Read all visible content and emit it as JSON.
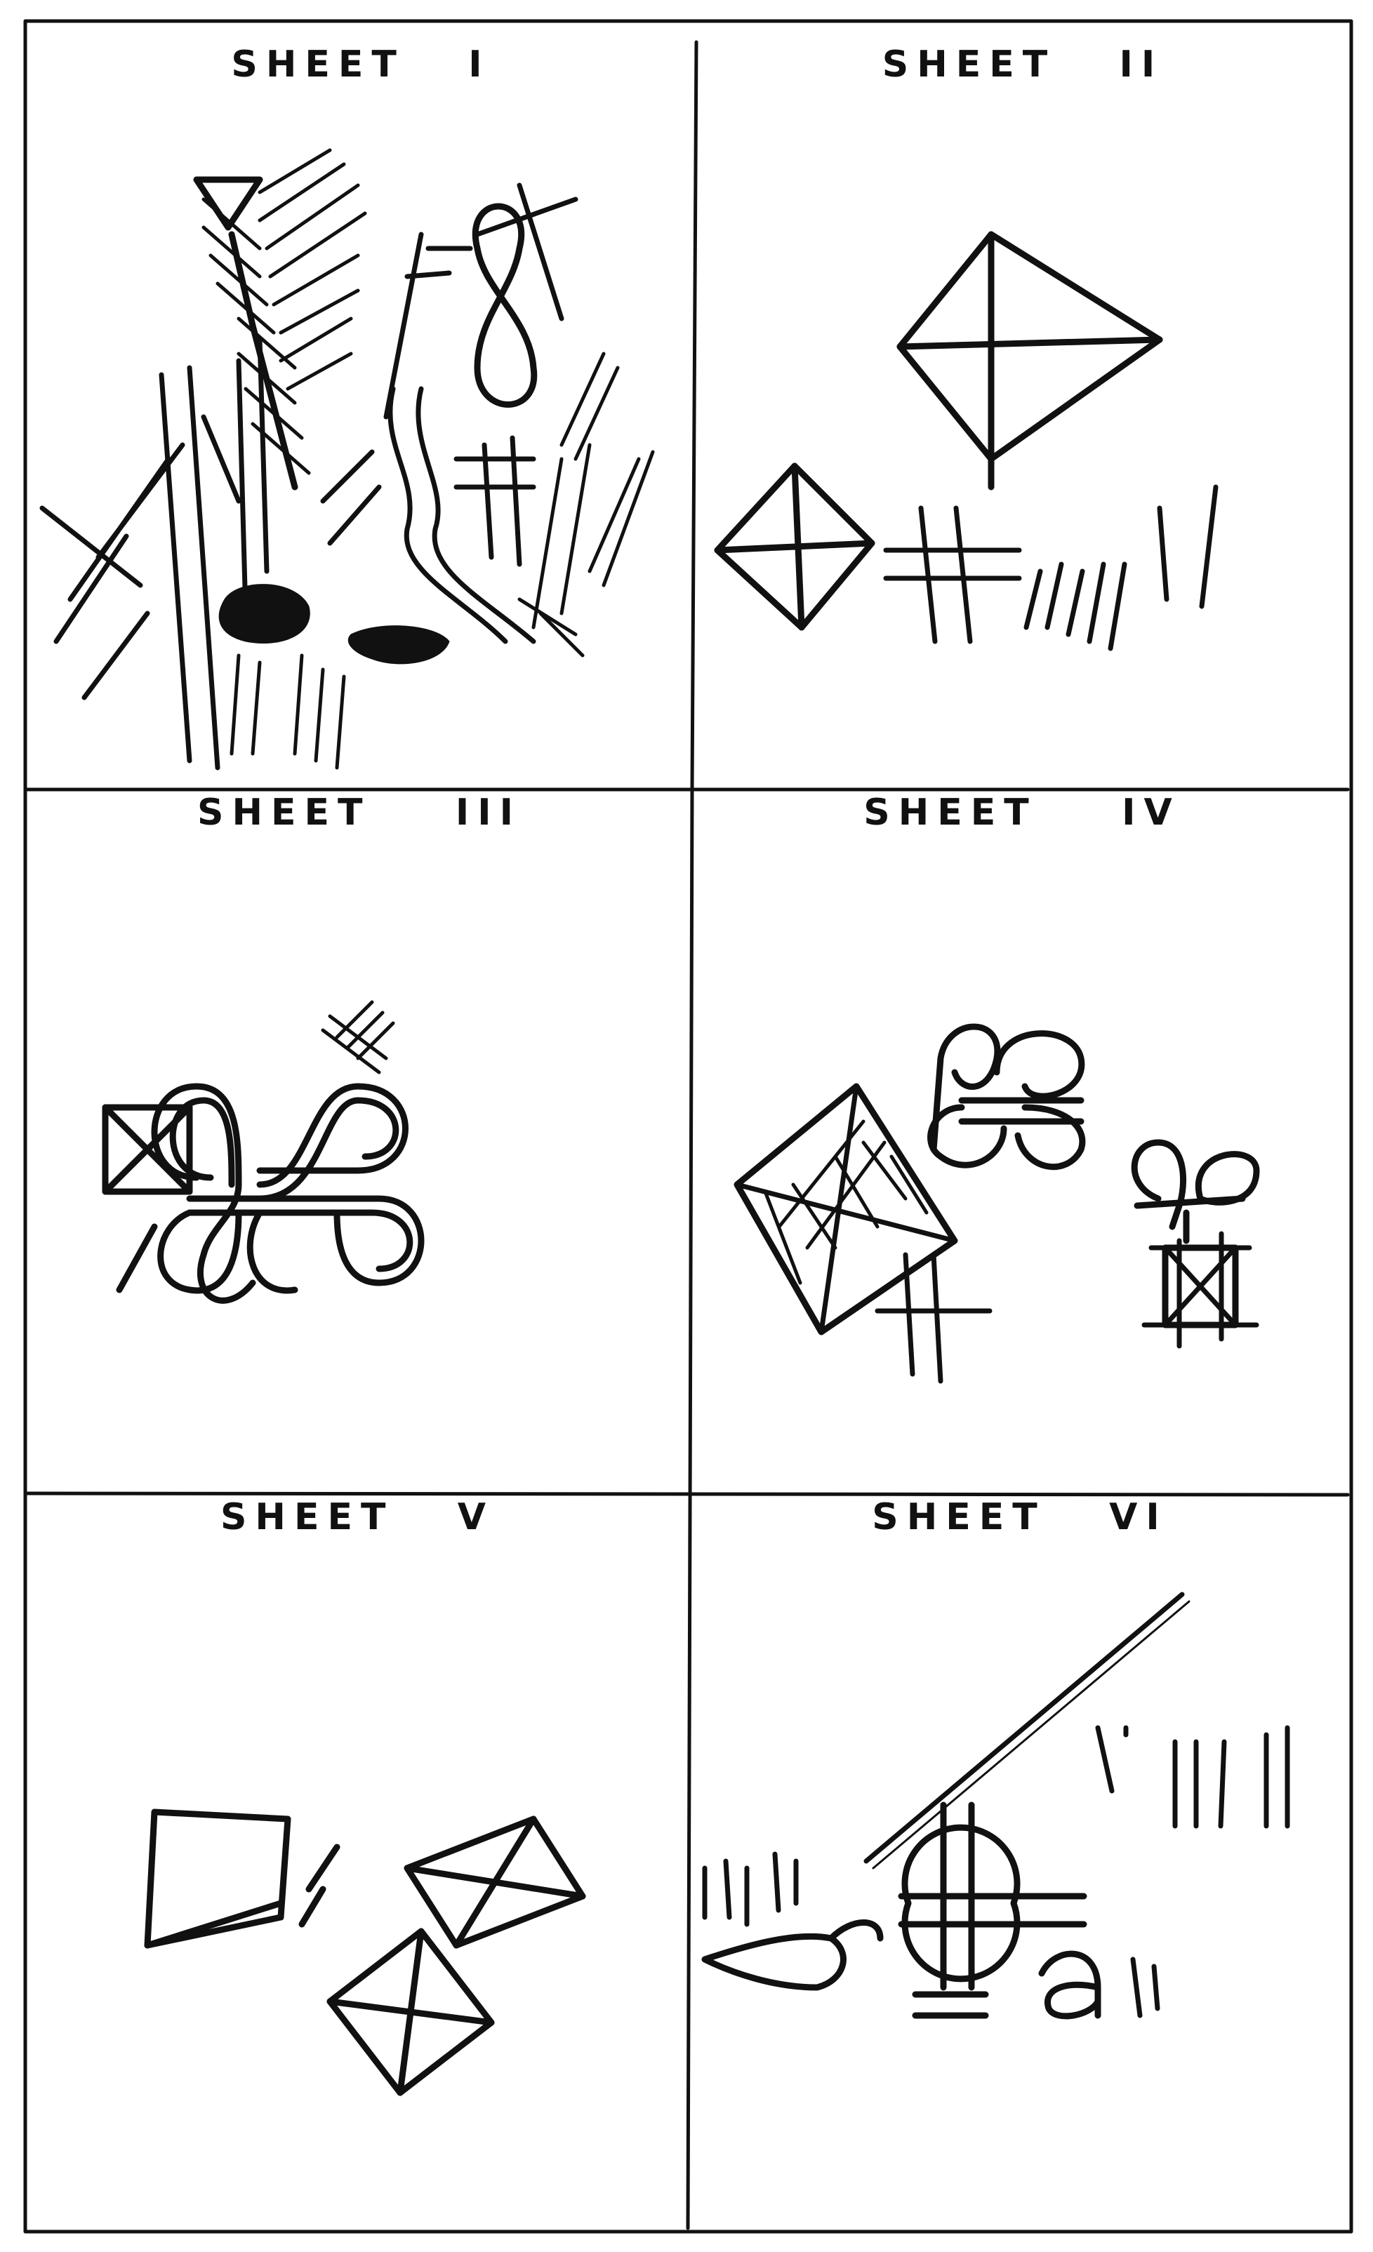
{
  "panels": [
    {
      "title": "SHEET   I"
    },
    {
      "title": "SHEET   II"
    },
    {
      "title": "SHEET    III"
    },
    {
      "title": "SHEET    IV"
    },
    {
      "title": "SHEET   V"
    },
    {
      "title": "SHEET   VI"
    }
  ]
}
